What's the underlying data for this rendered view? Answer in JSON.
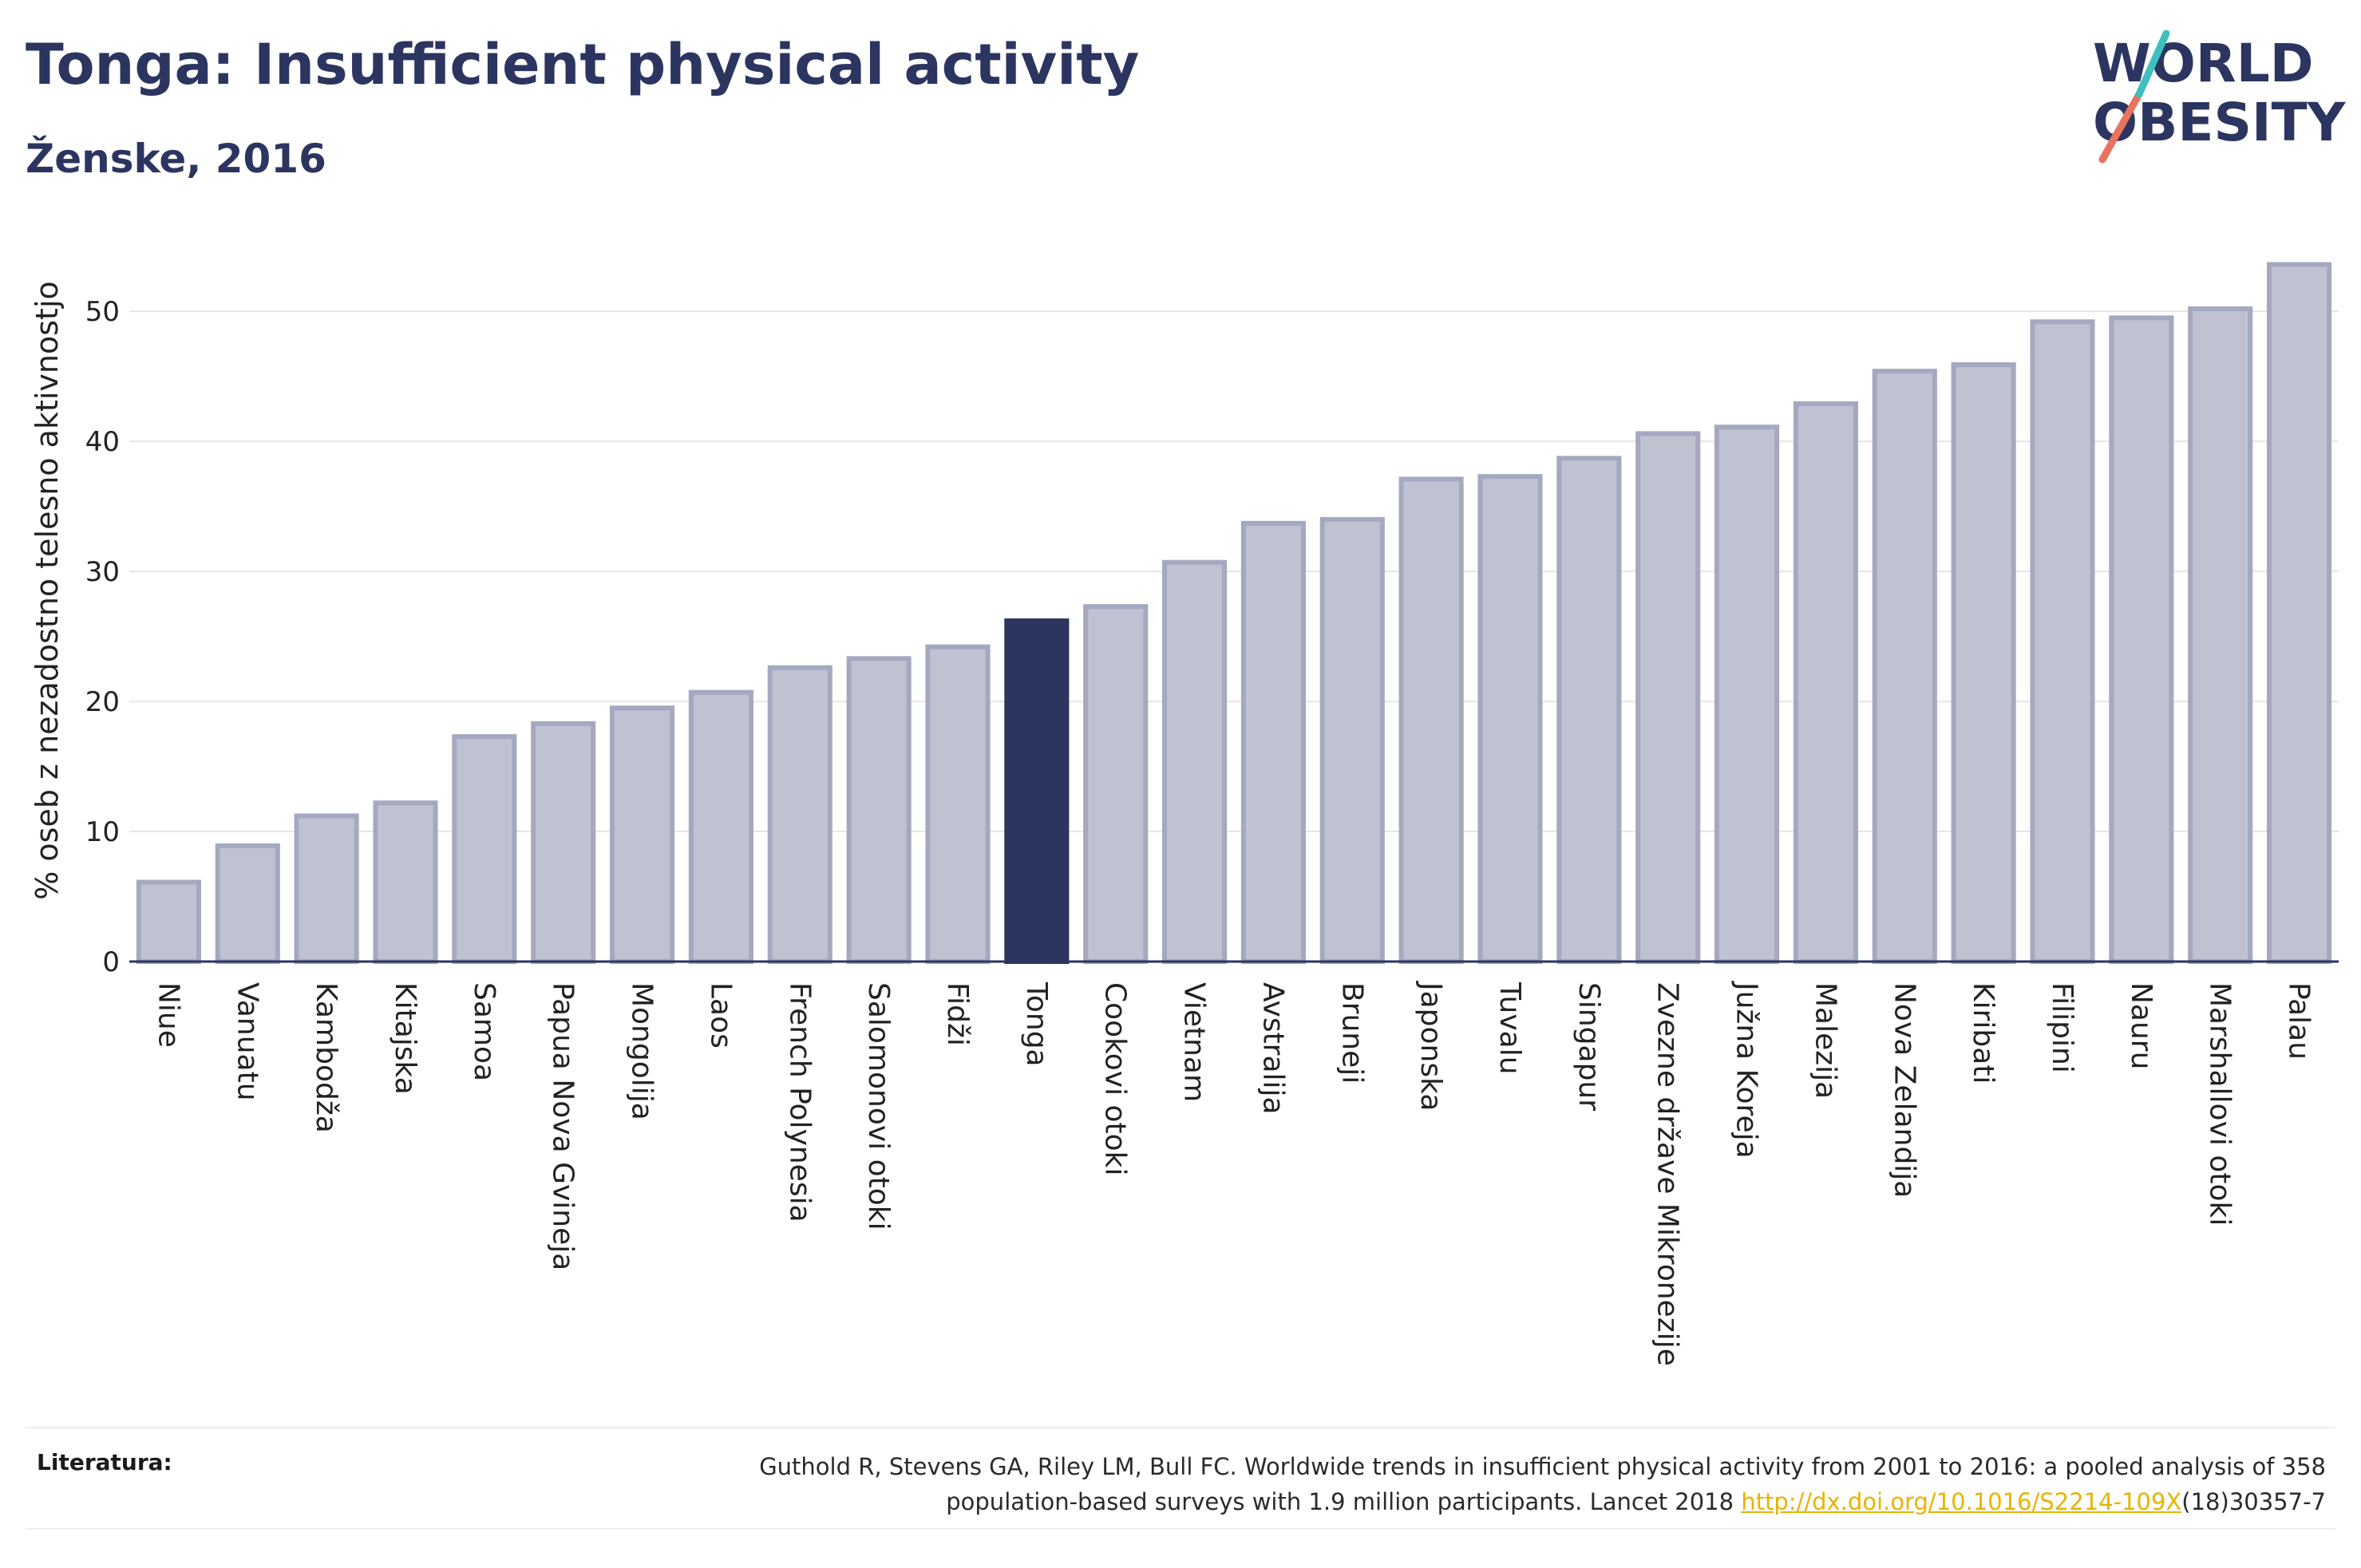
{
  "header": {
    "title": "Tonga: Insufficient physical activity",
    "subtitle": "Ženske, 2016"
  },
  "logo": {
    "line1": "WORLD",
    "line2": "OBESITY"
  },
  "colors": {
    "bar": "#bfc2d0",
    "bar_stroke": "#a4a9c0",
    "highlight": "#2c3560",
    "grid": "#e6e6e6",
    "text": "#2c3560",
    "logo_slash_red": "#e8735f",
    "logo_slash_teal": "#3fbfbf",
    "link": "#e8b400"
  },
  "chart_data": {
    "type": "bar",
    "ylabel": "% oseb z nezadostno telesno aktivnostjo",
    "xlabel": "",
    "ylim": [
      0,
      54
    ],
    "yticks": [
      0,
      10,
      20,
      30,
      40,
      50
    ],
    "grid": true,
    "highlight": "Tonga",
    "categories": [
      "Niue",
      "Vanuatu",
      "Kambodža",
      "Kitajska",
      "Samoa",
      "Papua Nova Gvineja",
      "Mongolija",
      "Laos",
      "French Polynesia",
      "Salomonovi otoki",
      "Fidži",
      "Tonga",
      "Cookovi otoki",
      "Vietnam",
      "Avstralija",
      "Bruneji",
      "Japonska",
      "Tuvalu",
      "Singapur",
      "Zvezne države Mikronezije",
      "Južna Koreja",
      "Malezija",
      "Nova Zelandija",
      "Kiribati",
      "Filipini",
      "Nauru",
      "Marshallovi otoki",
      "Palau"
    ],
    "values": [
      6.1,
      8.9,
      11.2,
      12.2,
      17.3,
      18.3,
      19.5,
      20.7,
      22.6,
      23.3,
      24.2,
      26.2,
      27.3,
      30.7,
      33.7,
      34.0,
      37.1,
      37.3,
      38.7,
      40.6,
      41.1,
      42.9,
      45.4,
      45.9,
      49.2,
      49.5,
      50.2,
      53.6
    ]
  },
  "footer": {
    "label": "Literatura:",
    "text_line1": "Guthold R, Stevens GA, Riley LM, Bull FC. Worldwide trends in insufficient physical activity from 2001 to 2016: a pooled analysis of 358",
    "text_line2_prefix": "population-based surveys with 1.9 million participants. Lancet 2018 ",
    "link": "http://dx.doi.org/10.1016/S2214-109X",
    "text_line2_suffix": "(18)30357-7"
  }
}
